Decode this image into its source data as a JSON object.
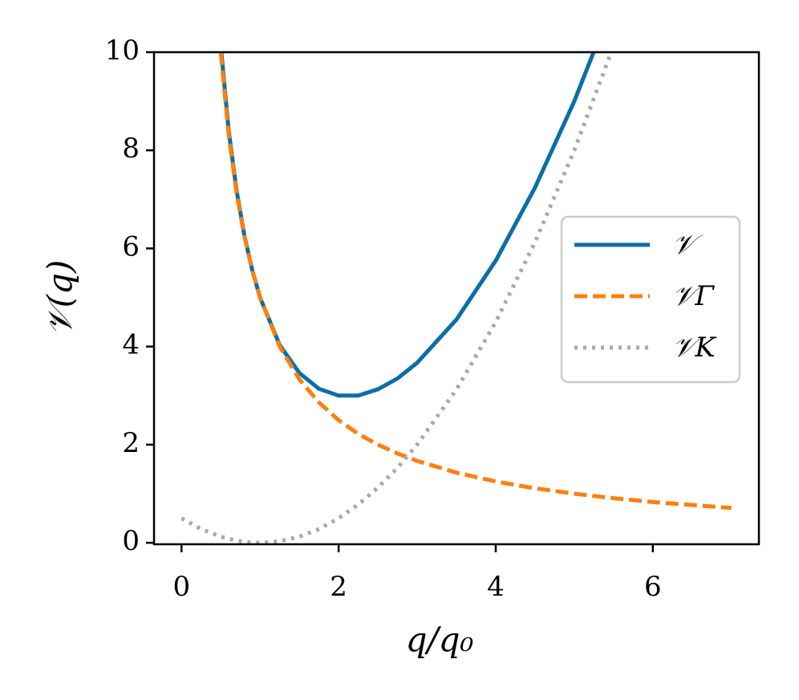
{
  "chart_data": {
    "type": "line",
    "xlabel": "q/q₀",
    "ylabel": "𝒱(q)",
    "x": [
      0,
      0.25,
      0.5,
      0.6,
      0.7,
      0.8,
      0.9,
      1.0,
      1.25,
      1.5,
      1.75,
      2.0,
      2.25,
      2.5,
      2.75,
      3.0,
      3.5,
      4.0,
      4.5,
      5.0,
      5.5,
      6.0,
      6.5,
      7.0
    ],
    "series": [
      {
        "name": "𝒱",
        "color": "#0b6ea8",
        "dash": "solid",
        "values": [
          null,
          null,
          10.13,
          8.41,
          7.19,
          6.27,
          5.56,
          5.0,
          4.03,
          3.46,
          3.14,
          3.0,
          3.0,
          3.13,
          3.35,
          3.67,
          4.55,
          5.75,
          7.24,
          9.0,
          11.03,
          null,
          null,
          null
        ]
      },
      {
        "name": "𝒱Γ",
        "color": "#ff7f0e",
        "dash": "dashed",
        "values": [
          null,
          null,
          10.0,
          8.33,
          7.14,
          6.25,
          5.56,
          5.0,
          4.0,
          3.33,
          2.86,
          2.5,
          2.22,
          2.0,
          1.82,
          1.67,
          1.43,
          1.25,
          1.11,
          1.0,
          0.91,
          0.83,
          0.77,
          0.71
        ]
      },
      {
        "name": "𝒱K",
        "color": "#a9a9a9",
        "dash": "dotted",
        "values": [
          0.5,
          0.28,
          0.125,
          0.08,
          0.045,
          0.02,
          0.005,
          0.0,
          0.03,
          0.125,
          0.28,
          0.5,
          0.78,
          1.125,
          1.53,
          2.0,
          3.125,
          4.5,
          6.125,
          8.0,
          10.125,
          null,
          null,
          null
        ]
      }
    ],
    "xlim": [
      -0.35,
      7.35
    ],
    "ylim": [
      -0.03,
      10
    ],
    "xticks": [
      0,
      2,
      4,
      6
    ],
    "yticks": [
      0,
      2,
      4,
      6,
      8,
      10
    ],
    "grid": false,
    "legend": "center right"
  }
}
